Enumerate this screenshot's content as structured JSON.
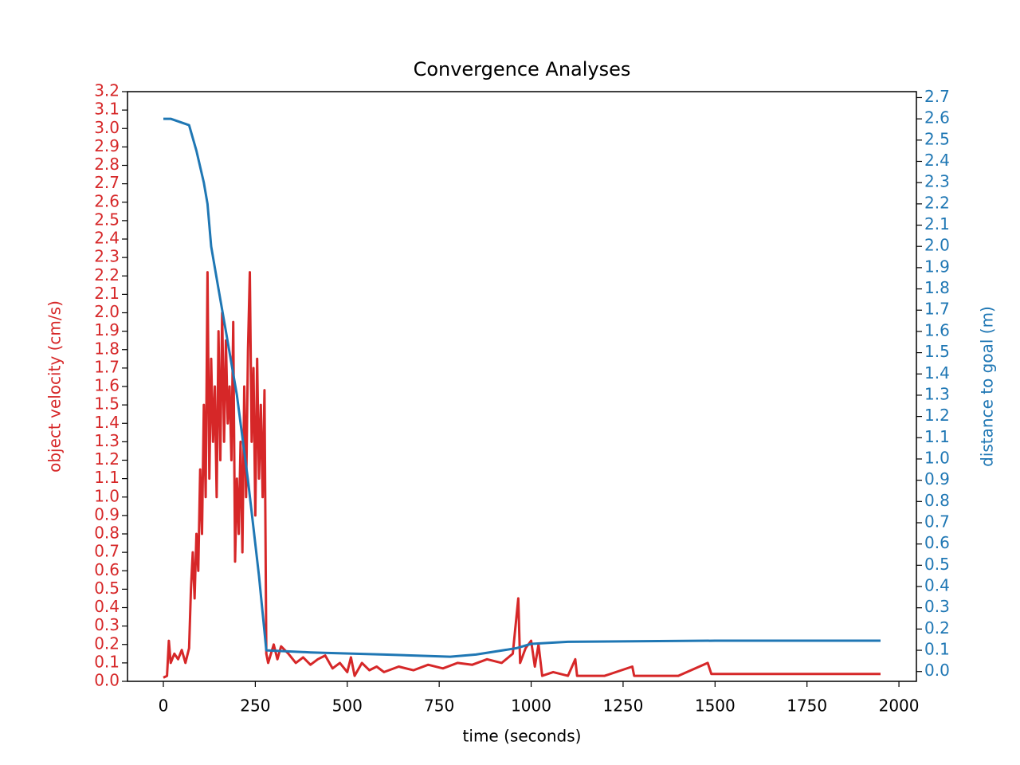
{
  "chart_data": {
    "type": "line",
    "title": "Convergence Analyses",
    "xlabel": "time (seconds)",
    "ylabel": "object velocity (cm/s)",
    "y2label": "distance to goal (m)",
    "xlim": [
      -97.5,
      2047.5
    ],
    "xticks": [
      0,
      250,
      500,
      750,
      1000,
      1250,
      1500,
      1750,
      2000
    ],
    "ylim": [
      0,
      3.2
    ],
    "yticks": [
      {
        "value": 0,
        "label": "0.0"
      },
      0.1,
      0.2,
      0.3,
      0.4,
      0.5,
      0.6,
      0.7,
      0.8,
      0.9,
      {
        "value": 1,
        "label": "1.0"
      },
      1.1,
      1.2,
      1.3,
      1.4,
      1.5,
      1.6,
      1.7,
      1.8,
      1.9,
      {
        "value": 2,
        "label": "2.0"
      },
      2.1,
      2.2,
      2.3,
      2.4,
      2.5,
      2.6,
      2.7,
      2.8,
      2.9,
      {
        "value": 3,
        "label": "3.0"
      },
      3.1,
      3.2
    ],
    "y2lim": [
      -0.046,
      2.728
    ],
    "y2ticks": [
      {
        "value": 0,
        "label": "0.0"
      },
      0.1,
      0.2,
      0.3,
      0.4,
      0.5,
      0.6,
      0.7,
      0.8,
      0.9,
      {
        "value": 1,
        "label": "1.0"
      },
      1.1,
      1.2,
      1.3,
      1.4,
      1.5,
      1.6,
      1.7,
      1.8,
      1.9,
      {
        "value": 2,
        "label": "2.0"
      },
      2.1,
      2.2,
      2.3,
      2.4,
      2.5,
      2.6,
      2.7
    ],
    "ycolor": "#d62728",
    "y2color": "#1f77b4",
    "series": [
      {
        "color": "#d62728",
        "axis": "y",
        "x": [
          0,
          10,
          15,
          20,
          30,
          40,
          50,
          60,
          70,
          75,
          80,
          85,
          90,
          95,
          100,
          105,
          110,
          115,
          120,
          125,
          130,
          135,
          140,
          145,
          150,
          155,
          160,
          165,
          170,
          175,
          180,
          185,
          190,
          195,
          200,
          205,
          210,
          215,
          220,
          225,
          230,
          235,
          240,
          245,
          250,
          255,
          260,
          265,
          270,
          275,
          280,
          285,
          300,
          310,
          320,
          340,
          360,
          380,
          400,
          420,
          440,
          460,
          480,
          500,
          510,
          520,
          540,
          560,
          580,
          600,
          640,
          680,
          720,
          760,
          800,
          840,
          880,
          920,
          950,
          965,
          970,
          985,
          1000,
          1010,
          1020,
          1030,
          1060,
          1100,
          1120,
          1125,
          1200,
          1275,
          1280,
          1400,
          1480,
          1490,
          1950
        ],
        "values": [
          0.02,
          0.03,
          0.22,
          0.1,
          0.15,
          0.12,
          0.17,
          0.1,
          0.18,
          0.5,
          0.7,
          0.45,
          0.8,
          0.6,
          1.15,
          0.8,
          1.5,
          1.0,
          2.22,
          1.1,
          1.75,
          1.3,
          1.6,
          1.0,
          1.9,
          1.2,
          2.0,
          1.3,
          1.85,
          1.4,
          1.6,
          1.2,
          1.95,
          0.65,
          1.1,
          0.8,
          1.3,
          0.7,
          1.6,
          1.0,
          1.8,
          2.22,
          1.3,
          1.7,
          0.9,
          1.75,
          1.1,
          1.5,
          1.0,
          1.58,
          0.15,
          0.1,
          0.2,
          0.12,
          0.19,
          0.15,
          0.1,
          0.13,
          0.09,
          0.12,
          0.14,
          0.07,
          0.1,
          0.05,
          0.13,
          0.03,
          0.1,
          0.06,
          0.08,
          0.05,
          0.08,
          0.06,
          0.09,
          0.07,
          0.1,
          0.09,
          0.12,
          0.1,
          0.15,
          0.45,
          0.1,
          0.18,
          0.22,
          0.08,
          0.2,
          0.03,
          0.05,
          0.03,
          0.12,
          0.03,
          0.03,
          0.08,
          0.03,
          0.03,
          0.1,
          0.04,
          0.04
        ]
      },
      {
        "color": "#1f77b4",
        "axis": "y2",
        "x": [
          0,
          20,
          70,
          90,
          110,
          120,
          130,
          150,
          170,
          200,
          230,
          260,
          280,
          400,
          600,
          780,
          850,
          960,
          1000,
          1100,
          1500,
          1950
        ],
        "values": [
          2.6,
          2.6,
          2.57,
          2.45,
          2.3,
          2.2,
          2.0,
          1.8,
          1.6,
          1.3,
          0.9,
          0.45,
          0.1,
          0.09,
          0.08,
          0.07,
          0.08,
          0.11,
          0.13,
          0.14,
          0.145,
          0.145
        ]
      }
    ]
  }
}
